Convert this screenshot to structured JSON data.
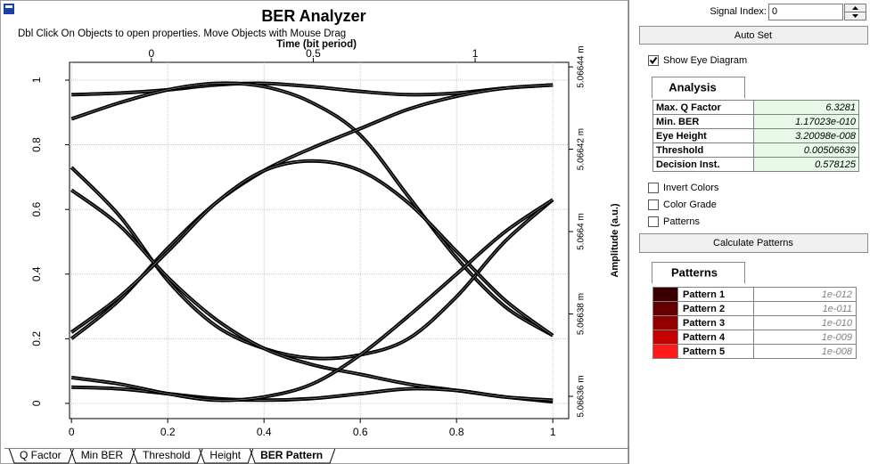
{
  "window": {
    "title": "BER Analyzer",
    "hint": "Dbl Click On Objects to open properties.  Move Objects with Mouse Drag"
  },
  "chart_data": {
    "type": "line",
    "x2label": "Time (bit period)",
    "y2label": "Amplitude (a.u.)",
    "grid": true,
    "x": [
      0,
      0.1,
      0.2,
      0.3,
      0.4,
      0.5,
      0.6,
      0.7,
      0.8,
      0.9,
      1.0
    ],
    "xlim": [
      -0.004,
      1.033
    ],
    "xticks": [
      0,
      0.2,
      0.4,
      0.6,
      0.8,
      1
    ],
    "ylim": [
      -0.047,
      1.055
    ],
    "yticks": [
      0,
      0.2,
      0.4,
      0.6,
      0.8,
      1
    ],
    "x2lim": [
      -0.253,
      1.289
    ],
    "x2ticks": [
      0,
      0.5,
      1
    ],
    "y2lim": [
      5.0663546,
      5.0664411
    ],
    "y2ticks": [
      {
        "value": 5.06636,
        "label": "5.06636 m"
      },
      {
        "value": 5.06638,
        "label": "5.06638 m"
      },
      {
        "value": 5.0664,
        "label": "5.0664 m"
      },
      {
        "value": 5.06642,
        "label": "5.06642 m"
      },
      {
        "value": 5.06644,
        "label": "5.06644 m"
      }
    ],
    "series": [
      {
        "color": "#000000",
        "values": [
          0.955,
          0.96,
          0.97,
          0.985,
          0.99,
          0.98,
          0.965,
          0.955,
          0.96,
          0.975,
          0.985
        ]
      },
      {
        "color": "#000000",
        "values": [
          0.88,
          0.93,
          0.97,
          0.99,
          0.98,
          0.93,
          0.83,
          0.64,
          0.45,
          0.3,
          0.21
        ]
      },
      {
        "color": "#000000",
        "values": [
          0.2,
          0.32,
          0.48,
          0.62,
          0.72,
          0.79,
          0.85,
          0.91,
          0.95,
          0.975,
          0.985
        ]
      },
      {
        "color": "#000000",
        "values": [
          0.73,
          0.58,
          0.38,
          0.24,
          0.17,
          0.14,
          0.15,
          0.2,
          0.33,
          0.5,
          0.63
        ]
      },
      {
        "color": "#000000",
        "values": [
          0.66,
          0.55,
          0.39,
          0.26,
          0.17,
          0.12,
          0.09,
          0.06,
          0.04,
          0.02,
          0.005
        ]
      },
      {
        "color": "#000000",
        "values": [
          0.22,
          0.33,
          0.47,
          0.62,
          0.72,
          0.75,
          0.72,
          0.62,
          0.47,
          0.32,
          0.21
        ]
      },
      {
        "color": "#000000",
        "values": [
          0.05,
          0.045,
          0.03,
          0.015,
          0.01,
          0.015,
          0.03,
          0.045,
          0.04,
          0.02,
          0.01
        ]
      },
      {
        "color": "#000000",
        "values": [
          0.08,
          0.06,
          0.03,
          0.01,
          0.02,
          0.06,
          0.15,
          0.27,
          0.4,
          0.53,
          0.63
        ]
      }
    ]
  },
  "tabs": [
    "Q Factor",
    "Min BER",
    "Threshold",
    "Height",
    "BER Pattern"
  ],
  "active_tab": 4,
  "panel": {
    "signal_index_label": "Signal Index:",
    "signal_index": "0",
    "auto_set": "Auto Set",
    "show_eye": {
      "label": "Show Eye Diagram",
      "checked": true
    },
    "analysis_tab": "Analysis",
    "analysis": [
      [
        "Max. Q Factor",
        "6.3281"
      ],
      [
        "Min. BER",
        "1.17023e-010"
      ],
      [
        "Eye Height",
        "3.20098e-008"
      ],
      [
        "Threshold",
        "0.00506639"
      ],
      [
        "Decision Inst.",
        "0.578125"
      ]
    ],
    "options": [
      {
        "label": "Invert Colors",
        "checked": false
      },
      {
        "label": "Color Grade",
        "checked": false
      },
      {
        "label": "Patterns",
        "checked": false
      }
    ],
    "calculate": "Calculate Patterns",
    "patterns_tab": "Patterns",
    "patterns": [
      {
        "name": "Pattern 1",
        "color": "#3a0000",
        "value": "1e-012"
      },
      {
        "name": "Pattern 2",
        "color": "#650000",
        "value": "1e-011"
      },
      {
        "name": "Pattern 3",
        "color": "#930000",
        "value": "1e-010"
      },
      {
        "name": "Pattern 4",
        "color": "#c40000",
        "value": "1e-009"
      },
      {
        "name": "Pattern 5",
        "color": "#ff1a1a",
        "value": "1e-008"
      }
    ]
  }
}
